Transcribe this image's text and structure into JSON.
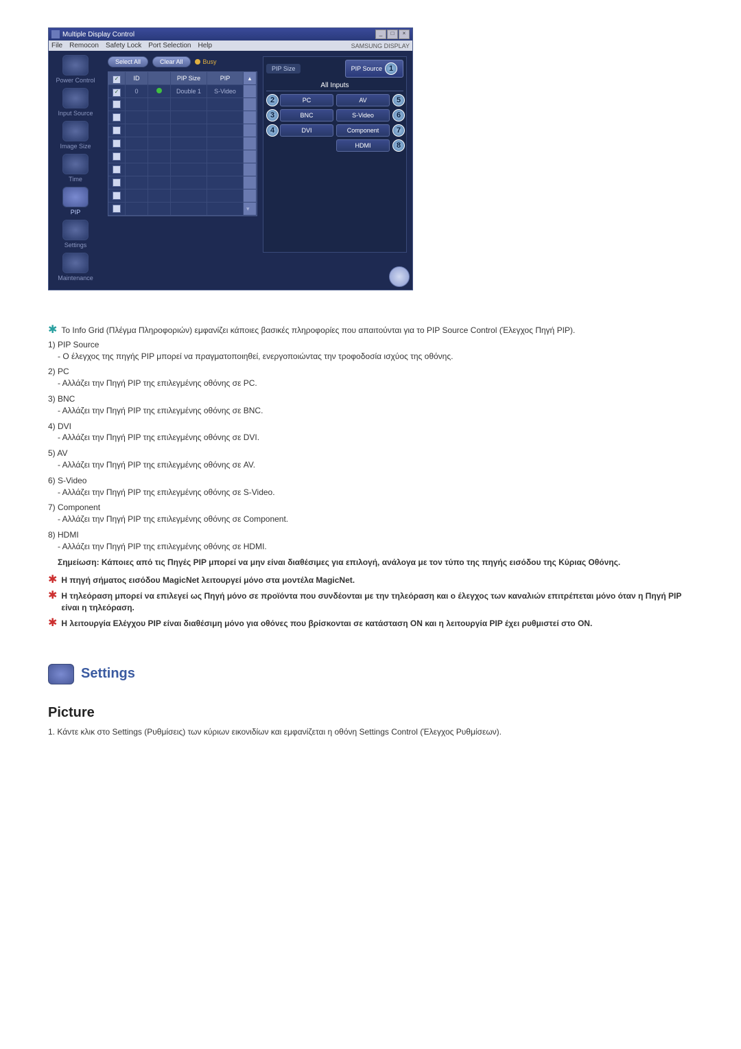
{
  "window": {
    "title": "Multiple Display Control",
    "menus": [
      "File",
      "Remocon",
      "Safety Lock",
      "Port Selection",
      "Help"
    ],
    "brand": "SAMSUNG DISPLAY"
  },
  "sidebar": {
    "items": [
      {
        "label": "Power Control"
      },
      {
        "label": "Input Source"
      },
      {
        "label": "Image Size"
      },
      {
        "label": "Time"
      },
      {
        "label": "PIP"
      },
      {
        "label": "Settings"
      },
      {
        "label": "Maintenance"
      }
    ]
  },
  "toolbar": {
    "select_all": "Select All",
    "clear_all": "Clear All",
    "busy": "Busy"
  },
  "grid": {
    "headers": {
      "chk": "☑",
      "id": "ID",
      "status": "",
      "size": "PIP Size",
      "source": "PIP Source"
    },
    "rows": [
      {
        "checked": true,
        "id": "0",
        "status": "green",
        "size": "Double 1",
        "source": "S-Video"
      },
      {
        "checked": false
      },
      {
        "checked": false
      },
      {
        "checked": false
      },
      {
        "checked": false
      },
      {
        "checked": false
      },
      {
        "checked": false
      },
      {
        "checked": false
      },
      {
        "checked": false
      },
      {
        "checked": false
      }
    ]
  },
  "rightpanel": {
    "pip_size_label": "PIP Size",
    "pip_source_label": "PIP Source",
    "num_source": "1",
    "all_inputs": "All Inputs",
    "buttons": [
      {
        "num": "2",
        "left": "PC",
        "right": "AV",
        "rnum": "5"
      },
      {
        "num": "3",
        "left": "BNC",
        "right": "S-Video",
        "rnum": "6"
      },
      {
        "num": "4",
        "left": "DVI",
        "right": "Component",
        "rnum": "7"
      },
      {
        "num": "",
        "left": "",
        "right": "HDMI",
        "rnum": "8"
      }
    ]
  },
  "info_text": "Το Info Grid (Πλέγμα Πληροφοριών) εμφανίζει κάποιες βασικές πληροφορίες που απαιτούνται για το PIP Source Control (Έλεγχος Πηγή PIP).",
  "items": [
    {
      "head": "1) PIP Source",
      "body": "- Ο έλεγχος της πηγής PIP μπορεί να πραγματοποιηθεί, ενεργοποιώντας την τροφοδοσία ισχύος της οθόνης."
    },
    {
      "head": "2) PC",
      "body": "- Αλλάζει την Πηγή PIP της επιλεγμένης οθόνης σε PC."
    },
    {
      "head": "3) BNC",
      "body": "- Αλλάζει την Πηγή PIP της επιλεγμένης οθόνης σε BNC."
    },
    {
      "head": "4) DVI",
      "body": "- Αλλάζει την Πηγή PIP της επιλεγμένης οθόνης σε DVI."
    },
    {
      "head": "5) AV",
      "body": "- Αλλάζει την Πηγή PIP της επιλεγμένης οθόνης σε AV."
    },
    {
      "head": "6) S-Video",
      "body": "- Αλλάζει την Πηγή PIP της επιλεγμένης οθόνης σε S-Video."
    },
    {
      "head": "7) Component",
      "body": "- Αλλάζει την Πηγή PIP της επιλεγμένης οθόνης σε Component."
    },
    {
      "head": "8) HDMI",
      "body": "- Αλλάζει την Πηγή PIP της επιλεγμένης οθόνης σε HDMI."
    }
  ],
  "bold_note": "Σημείωση: Κάποιες από τις Πηγές PIP μπορεί να μην είναι διαθέσιμες για επιλογή, ανάλογα με τον τύπο της πηγής εισόδου της Κύριας Οθόνης.",
  "red_notes": [
    "Η πηγή σήματος εισόδου MagicNet λειτουργεί μόνο στα μοντέλα MagicNet.",
    "Η τηλεόραση μπορεί να επιλεγεί ως Πηγή μόνο σε προϊόντα που συνδέονται με την τηλεόραση και ο έλεγχος των καναλιών επιτρέπεται μόνο όταν η Πηγή PIP είναι η τηλεόραση.",
    "Η λειτουργία Ελέγχου PIP είναι διαθέσιμη μόνο για οθόνες που βρίσκονται σε κατάσταση ON και η λειτουργία PIP έχει ρυθμιστεί στο ON."
  ],
  "settings_title": "Settings",
  "picture_title": "Picture",
  "picture_item": "1.  Κάντε κλικ στο Settings (Ρυθμίσεις) των κύριων εικονιδίων και εμφανίζεται η οθόνη Settings Control (Έλεγχος Ρυθμίσεων)."
}
